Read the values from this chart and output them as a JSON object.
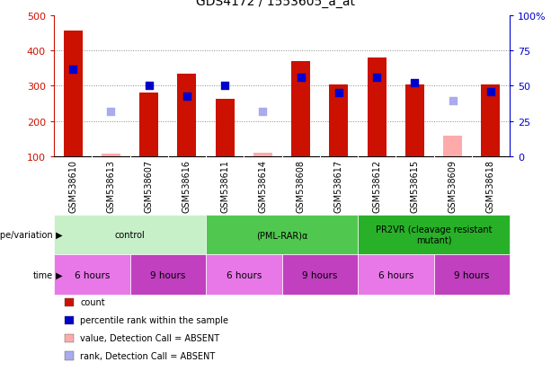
{
  "title": "GDS4172 / 1553605_a_at",
  "samples": [
    "GSM538610",
    "GSM538613",
    "GSM538607",
    "GSM538616",
    "GSM538611",
    "GSM538614",
    "GSM538608",
    "GSM538617",
    "GSM538612",
    "GSM538615",
    "GSM538609",
    "GSM538618"
  ],
  "count_values": [
    457,
    null,
    280,
    335,
    263,
    null,
    370,
    305,
    380,
    305,
    null,
    305
  ],
  "count_absent": [
    null,
    107,
    null,
    null,
    null,
    110,
    null,
    null,
    null,
    null,
    157,
    null
  ],
  "percentile_rank": [
    348,
    null,
    302,
    270,
    302,
    null,
    323,
    280,
    325,
    310,
    null,
    283
  ],
  "percentile_absent": [
    null,
    227,
    null,
    null,
    null,
    227,
    null,
    null,
    null,
    null,
    257,
    null
  ],
  "ylim_left": [
    100,
    500
  ],
  "ylim_right": [
    0,
    100
  ],
  "yticks_left": [
    100,
    200,
    300,
    400,
    500
  ],
  "yticks_right": [
    0,
    25,
    50,
    75,
    100
  ],
  "ytick_labels_right": [
    "0",
    "25",
    "50",
    "75",
    "100%"
  ],
  "genotype_groups": [
    {
      "label": "control",
      "start": 0,
      "end": 4,
      "color": "#c8f0c8"
    },
    {
      "label": "(PML-RAR)α",
      "start": 4,
      "end": 8,
      "color": "#50c850"
    },
    {
      "label": "PR2VR (cleavage resistant\nmutant)",
      "start": 8,
      "end": 12,
      "color": "#28b028"
    }
  ],
  "time_groups": [
    {
      "label": "6 hours",
      "start": 0,
      "end": 2,
      "color": "#e878e8"
    },
    {
      "label": "9 hours",
      "start": 2,
      "end": 4,
      "color": "#c040c0"
    },
    {
      "label": "6 hours",
      "start": 4,
      "end": 6,
      "color": "#e878e8"
    },
    {
      "label": "9 hours",
      "start": 6,
      "end": 8,
      "color": "#c040c0"
    },
    {
      "label": "6 hours",
      "start": 8,
      "end": 10,
      "color": "#e878e8"
    },
    {
      "label": "9 hours",
      "start": 10,
      "end": 12,
      "color": "#c040c0"
    }
  ],
  "bar_color_present": "#cc1100",
  "bar_color_absent": "#ffaaaa",
  "dot_color_present": "#0000cc",
  "dot_color_absent": "#aaaaee",
  "bar_width": 0.5,
  "dot_size": 28,
  "legend_items": [
    {
      "label": "count",
      "color": "#cc1100"
    },
    {
      "label": "percentile rank within the sample",
      "color": "#0000cc"
    },
    {
      "label": "value, Detection Call = ABSENT",
      "color": "#ffaaaa"
    },
    {
      "label": "rank, Detection Call = ABSENT",
      "color": "#aaaaee"
    }
  ],
  "bar_color_red": "#cc1100",
  "ylabel_right_color": "#0000cc",
  "grid_color": "#888888",
  "bg_color": "#ffffff",
  "sample_bg_color": "#cccccc"
}
